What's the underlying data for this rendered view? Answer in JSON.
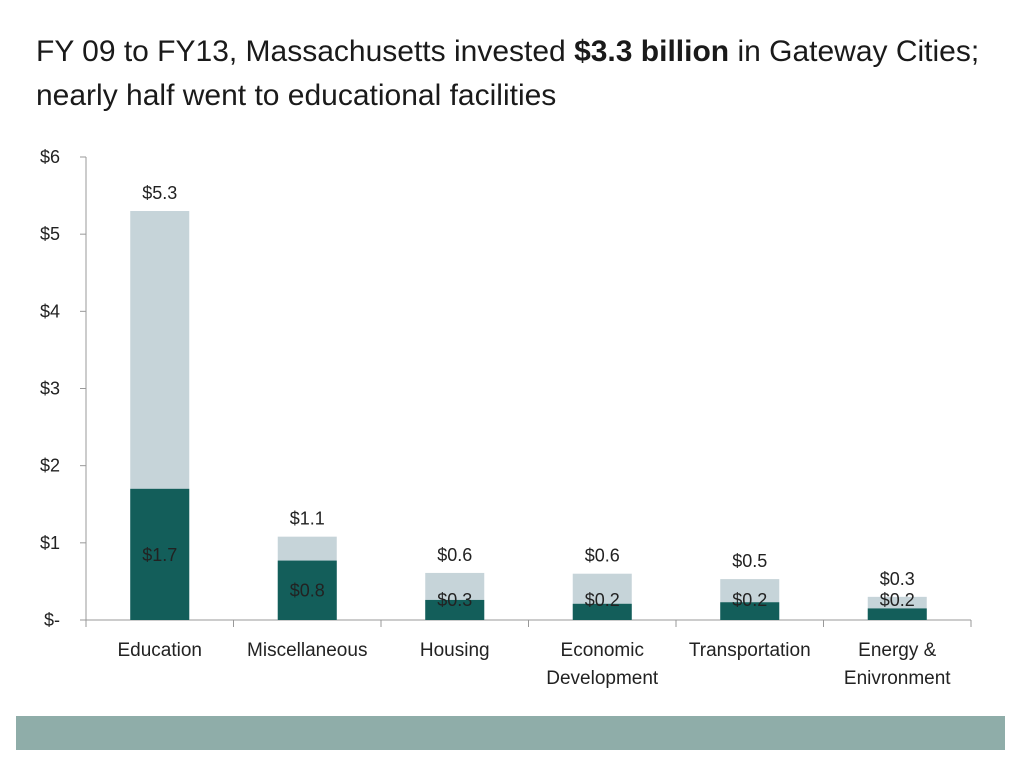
{
  "header": {
    "title_part1": "FY 09 to FY13, Massachusetts invested ",
    "title_bold": "$3.3 billion",
    "title_part2": " in Gateway Cities; nearly half went to educational facilities"
  },
  "colors": {
    "dark_bar": "#135e5a",
    "light_bar": "#c6d4d9",
    "axis": "#999999",
    "footer": "#8fada9"
  },
  "chart_data": {
    "type": "bar",
    "stacking": "overlay",
    "categories": [
      "Education",
      "Miscellaneous",
      "Housing",
      "Economic Development",
      "Transportation",
      "Energy & Enivronment"
    ],
    "category_lines": [
      [
        "Education"
      ],
      [
        "Miscellaneous"
      ],
      [
        "Housing"
      ],
      [
        "Economic",
        "Development"
      ],
      [
        "Transportation"
      ],
      [
        "Energy &",
        "Enivronment"
      ]
    ],
    "series": [
      {
        "values": [
          5.3,
          1.08,
          0.61,
          0.6,
          0.53,
          0.3
        ],
        "labels": [
          "$5.3",
          "$1.1",
          "$0.6",
          "$0.6",
          "$0.5",
          "$0.3"
        ],
        "color": "#c6d4d9"
      },
      {
        "values": [
          1.7,
          0.77,
          0.26,
          0.21,
          0.23,
          0.15
        ],
        "labels": [
          "$1.7",
          "$0.8",
          "$0.3",
          "$0.2",
          "$0.2",
          "$0.2"
        ],
        "color": "#135e5a"
      }
    ],
    "yticks": [
      0,
      1,
      2,
      3,
      4,
      5,
      6
    ],
    "ytick_labels": [
      "$-",
      "$1",
      "$2",
      "$3",
      "$4",
      "$5",
      "$6"
    ],
    "ylim": [
      0,
      6
    ],
    "grid": false,
    "legend": "none"
  }
}
